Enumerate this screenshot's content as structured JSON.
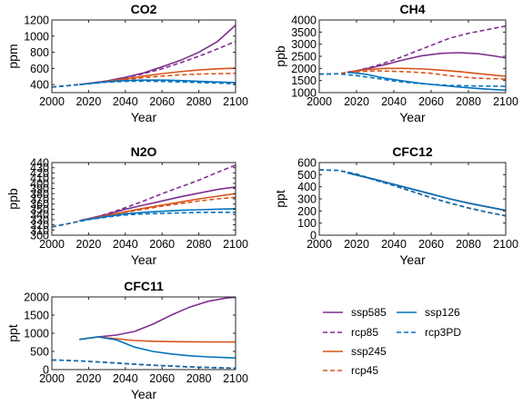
{
  "colors": {
    "ssp585": "#7e2f8e",
    "rcp85": "#7e2f8e",
    "ssp245": "#d95319",
    "rcp45": "#d95319",
    "ssp126": "#0072bd",
    "rcp3PD": "#0072bd"
  },
  "legend": {
    "placement": "bottom-right",
    "entries": [
      {
        "name": "ssp585",
        "dashed": false
      },
      {
        "name": "rcp85",
        "dashed": true
      },
      {
        "name": "ssp245",
        "dashed": false
      },
      {
        "name": "rcp45",
        "dashed": true
      },
      {
        "name": "ssp126",
        "dashed": false
      },
      {
        "name": "rcp3PD",
        "dashed": true
      }
    ]
  },
  "chart_data": [
    {
      "type": "line",
      "title": "CO2",
      "xlabel": "Year",
      "ylabel": "ppm",
      "xlim": [
        2000,
        2100
      ],
      "ylim": [
        300,
        1200
      ],
      "xticks": [
        2000,
        2020,
        2040,
        2060,
        2080,
        2100
      ],
      "yticks": [
        400,
        600,
        800,
        1000,
        1200
      ],
      "grid": false,
      "series": [
        {
          "name": "ssp585",
          "x": [
            2015,
            2030,
            2040,
            2050,
            2060,
            2070,
            2080,
            2090,
            2100
          ],
          "y": [
            400,
            445,
            490,
            545,
            620,
            700,
            800,
            930,
            1135
          ]
        },
        {
          "name": "rcp85",
          "x": [
            2000,
            2010,
            2020,
            2030,
            2040,
            2050,
            2060,
            2070,
            2080,
            2090,
            2100
          ],
          "y": [
            369,
            389,
            412,
            445,
            485,
            535,
            595,
            670,
            750,
            840,
            935
          ]
        },
        {
          "name": "ssp245",
          "x": [
            2015,
            2030,
            2040,
            2050,
            2060,
            2070,
            2080,
            2090,
            2100
          ],
          "y": [
            400,
            440,
            470,
            505,
            535,
            560,
            580,
            595,
            603
          ]
        },
        {
          "name": "rcp45",
          "x": [
            2000,
            2010,
            2020,
            2030,
            2040,
            2050,
            2060,
            2070,
            2080,
            2090,
            2100
          ],
          "y": [
            369,
            389,
            410,
            435,
            460,
            485,
            505,
            520,
            530,
            535,
            538
          ]
        },
        {
          "name": "ssp126",
          "x": [
            2015,
            2030,
            2040,
            2050,
            2060,
            2070,
            2080,
            2090,
            2100
          ],
          "y": [
            400,
            435,
            450,
            455,
            455,
            450,
            440,
            432,
            424
          ]
        },
        {
          "name": "rcp3PD",
          "x": [
            2000,
            2010,
            2020,
            2030,
            2040,
            2050,
            2060,
            2070,
            2080,
            2090,
            2100
          ],
          "y": [
            369,
            389,
            410,
            430,
            440,
            442,
            438,
            432,
            425,
            418,
            410
          ]
        }
      ]
    },
    {
      "type": "line",
      "title": "CH4",
      "xlabel": "Year",
      "ylabel": "ppb",
      "xlim": [
        2000,
        2100
      ],
      "ylim": [
        1000,
        4000
      ],
      "xticks": [
        2000,
        2020,
        2040,
        2060,
        2080,
        2100
      ],
      "yticks": [
        1000,
        1500,
        2000,
        2500,
        3000,
        3500,
        4000
      ],
      "grid": false,
      "series": [
        {
          "name": "ssp585",
          "x": [
            2015,
            2025,
            2035,
            2045,
            2055,
            2065,
            2075,
            2085,
            2095,
            2100
          ],
          "y": [
            1840,
            1980,
            2150,
            2350,
            2520,
            2620,
            2650,
            2610,
            2500,
            2430
          ]
        },
        {
          "name": "rcp85",
          "x": [
            2000,
            2010,
            2020,
            2030,
            2040,
            2050,
            2060,
            2070,
            2080,
            2090,
            2100
          ],
          "y": [
            1760,
            1780,
            1900,
            2100,
            2350,
            2650,
            2950,
            3250,
            3450,
            3600,
            3750
          ]
        },
        {
          "name": "ssp245",
          "x": [
            2015,
            2025,
            2035,
            2045,
            2055,
            2065,
            2075,
            2085,
            2095,
            2100
          ],
          "y": [
            1840,
            1950,
            2000,
            2000,
            1980,
            1930,
            1870,
            1790,
            1710,
            1680
          ]
        },
        {
          "name": "rcp45",
          "x": [
            2000,
            2010,
            2020,
            2030,
            2040,
            2050,
            2060,
            2070,
            2080,
            2090,
            2100
          ],
          "y": [
            1760,
            1780,
            1860,
            1900,
            1880,
            1850,
            1800,
            1700,
            1620,
            1580,
            1560
          ]
        },
        {
          "name": "ssp126",
          "x": [
            2015,
            2025,
            2035,
            2045,
            2055,
            2065,
            2075,
            2085,
            2095,
            2100
          ],
          "y": [
            1840,
            1760,
            1600,
            1480,
            1380,
            1300,
            1230,
            1170,
            1120,
            1100
          ]
        },
        {
          "name": "rcp3PD",
          "x": [
            2000,
            2010,
            2020,
            2030,
            2040,
            2050,
            2060,
            2070,
            2080,
            2090,
            2100
          ],
          "y": [
            1760,
            1780,
            1700,
            1600,
            1480,
            1400,
            1340,
            1300,
            1280,
            1270,
            1260
          ]
        }
      ]
    },
    {
      "type": "line",
      "title": "N2O",
      "xlabel": "Year",
      "ylabel": "ppb",
      "xlim": [
        2000,
        2100
      ],
      "ylim": [
        300,
        440
      ],
      "xticks": [
        2000,
        2020,
        2040,
        2060,
        2080,
        2100
      ],
      "yticks": [
        300,
        310,
        320,
        330,
        340,
        350,
        360,
        370,
        380,
        390,
        400,
        410,
        420,
        430,
        440
      ],
      "grid": false,
      "series": [
        {
          "name": "ssp585",
          "x": [
            2015,
            2030,
            2040,
            2050,
            2060,
            2070,
            2080,
            2090,
            2100
          ],
          "y": [
            328,
            340,
            350,
            358,
            366,
            374,
            381,
            388,
            393
          ]
        },
        {
          "name": "rcp85",
          "x": [
            2000,
            2010,
            2020,
            2030,
            2040,
            2050,
            2060,
            2070,
            2080,
            2090,
            2100
          ],
          "y": [
            316,
            323,
            331,
            341,
            353,
            366,
            380,
            393,
            406,
            421,
            435
          ]
        },
        {
          "name": "ssp245",
          "x": [
            2015,
            2030,
            2040,
            2050,
            2060,
            2070,
            2080,
            2090,
            2100
          ],
          "y": [
            328,
            338,
            345,
            352,
            358,
            364,
            370,
            375,
            380
          ]
        },
        {
          "name": "rcp45",
          "x": [
            2000,
            2010,
            2020,
            2030,
            2040,
            2050,
            2060,
            2070,
            2080,
            2090,
            2100
          ],
          "y": [
            316,
            323,
            331,
            337,
            344,
            350,
            356,
            361,
            366,
            370,
            373
          ]
        },
        {
          "name": "ssp126",
          "x": [
            2015,
            2030,
            2040,
            2050,
            2060,
            2070,
            2080,
            2090,
            2100
          ],
          "y": [
            328,
            336,
            341,
            344,
            346,
            348,
            349,
            350,
            351
          ]
        },
        {
          "name": "rcp3PD",
          "x": [
            2000,
            2010,
            2020,
            2030,
            2040,
            2050,
            2060,
            2070,
            2080,
            2090,
            2100
          ],
          "y": [
            316,
            323,
            330,
            335,
            339,
            341,
            342,
            343,
            344,
            344,
            344
          ]
        }
      ]
    },
    {
      "type": "line",
      "title": "CFC12",
      "xlabel": "Year",
      "ylabel": "ppt",
      "xlim": [
        2000,
        2100
      ],
      "ylim": [
        0,
        600
      ],
      "xticks": [
        2000,
        2020,
        2040,
        2060,
        2080,
        2100
      ],
      "yticks": [
        0,
        100,
        200,
        300,
        400,
        500,
        600
      ],
      "grid": false,
      "series": [
        {
          "name": "ssp585",
          "x": [
            2015,
            2030,
            2040,
            2050,
            2060,
            2070,
            2080,
            2090,
            2100
          ],
          "y": [
            515,
            460,
            420,
            380,
            340,
            300,
            265,
            235,
            205
          ]
        },
        {
          "name": "rcp85",
          "x": [
            2000,
            2010,
            2020,
            2030,
            2040,
            2050,
            2060,
            2070,
            2080,
            2090,
            2100
          ],
          "y": [
            540,
            535,
            505,
            455,
            410,
            360,
            310,
            265,
            225,
            190,
            160
          ]
        },
        {
          "name": "ssp245",
          "x": [
            2015,
            2030,
            2040,
            2050,
            2060,
            2070,
            2080,
            2090,
            2100
          ],
          "y": [
            515,
            460,
            420,
            380,
            340,
            300,
            265,
            235,
            205
          ]
        },
        {
          "name": "rcp45",
          "x": [
            2000,
            2010,
            2020,
            2030,
            2040,
            2050,
            2060,
            2070,
            2080,
            2090,
            2100
          ],
          "y": [
            540,
            535,
            505,
            455,
            410,
            360,
            310,
            265,
            225,
            190,
            160
          ]
        },
        {
          "name": "ssp126",
          "x": [
            2015,
            2030,
            2040,
            2050,
            2060,
            2070,
            2080,
            2090,
            2100
          ],
          "y": [
            515,
            460,
            420,
            380,
            340,
            300,
            265,
            235,
            205
          ]
        },
        {
          "name": "rcp3PD",
          "x": [
            2000,
            2010,
            2020,
            2030,
            2040,
            2050,
            2060,
            2070,
            2080,
            2090,
            2100
          ],
          "y": [
            540,
            535,
            505,
            455,
            410,
            360,
            310,
            265,
            225,
            190,
            160
          ]
        }
      ]
    },
    {
      "type": "line",
      "title": "CFC11",
      "xlabel": "Year",
      "ylabel": "ppt",
      "xlim": [
        2000,
        2100
      ],
      "ylim": [
        0,
        2000
      ],
      "xticks": [
        2000,
        2020,
        2040,
        2060,
        2080,
        2100
      ],
      "yticks": [
        0,
        500,
        1000,
        1500,
        2000
      ],
      "grid": false,
      "series": [
        {
          "name": "ssp585",
          "x": [
            2015,
            2025,
            2035,
            2045,
            2055,
            2065,
            2075,
            2085,
            2095,
            2100
          ],
          "y": [
            830,
            900,
            950,
            1050,
            1250,
            1500,
            1720,
            1880,
            1970,
            1990
          ]
        },
        {
          "name": "rcp85",
          "x": [
            2000,
            2010,
            2020,
            2030,
            2040,
            2050,
            2060,
            2070,
            2080,
            2090,
            2100
          ],
          "y": [
            265,
            250,
            225,
            195,
            165,
            135,
            108,
            85,
            65,
            50,
            40
          ]
        },
        {
          "name": "ssp245",
          "x": [
            2015,
            2025,
            2035,
            2045,
            2055,
            2065,
            2075,
            2085,
            2095,
            2100
          ],
          "y": [
            830,
            900,
            850,
            800,
            780,
            770,
            765,
            760,
            760,
            760
          ]
        },
        {
          "name": "rcp45",
          "x": [
            2000,
            2010,
            2020,
            2030,
            2040,
            2050,
            2060,
            2070,
            2080,
            2090,
            2100
          ],
          "y": [
            265,
            250,
            225,
            195,
            165,
            135,
            108,
            85,
            65,
            50,
            40
          ]
        },
        {
          "name": "ssp126",
          "x": [
            2015,
            2025,
            2035,
            2045,
            2055,
            2065,
            2075,
            2085,
            2095,
            2100
          ],
          "y": [
            830,
            900,
            820,
            620,
            500,
            430,
            380,
            350,
            330,
            320
          ]
        },
        {
          "name": "rcp3PD",
          "x": [
            2000,
            2010,
            2020,
            2030,
            2040,
            2050,
            2060,
            2070,
            2080,
            2090,
            2100
          ],
          "y": [
            265,
            250,
            225,
            195,
            165,
            135,
            108,
            85,
            65,
            50,
            40
          ]
        }
      ]
    }
  ]
}
